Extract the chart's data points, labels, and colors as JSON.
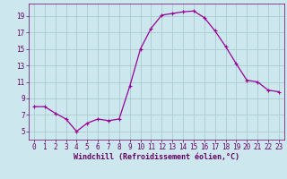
{
  "x": [
    0,
    1,
    2,
    3,
    4,
    5,
    6,
    7,
    8,
    9,
    10,
    11,
    12,
    13,
    14,
    15,
    16,
    17,
    18,
    19,
    20,
    21,
    22,
    23
  ],
  "y": [
    8.0,
    8.0,
    7.2,
    6.5,
    5.0,
    6.0,
    6.5,
    6.3,
    6.5,
    10.5,
    15.0,
    17.5,
    19.1,
    19.3,
    19.5,
    19.6,
    18.8,
    17.2,
    15.3,
    13.2,
    11.2,
    11.0,
    10.0,
    9.8
  ],
  "line_color": "#990099",
  "marker": "+",
  "marker_size": 3,
  "marker_lw": 0.8,
  "line_width": 0.9,
  "bg_color": "#cce8ee",
  "grid_color": "#aacccc",
  "xlabel": "Windchill (Refroidissement éolien,°C)",
  "xlabel_color": "#660066",
  "tick_color": "#660066",
  "xlim": [
    -0.5,
    23.5
  ],
  "ylim": [
    4.0,
    20.5
  ],
  "yticks": [
    5,
    7,
    9,
    11,
    13,
    15,
    17,
    19
  ],
  "xticks": [
    0,
    1,
    2,
    3,
    4,
    5,
    6,
    7,
    8,
    9,
    10,
    11,
    12,
    13,
    14,
    15,
    16,
    17,
    18,
    19,
    20,
    21,
    22,
    23
  ],
  "tick_fontsize": 5.5,
  "xlabel_fontsize": 6.0
}
